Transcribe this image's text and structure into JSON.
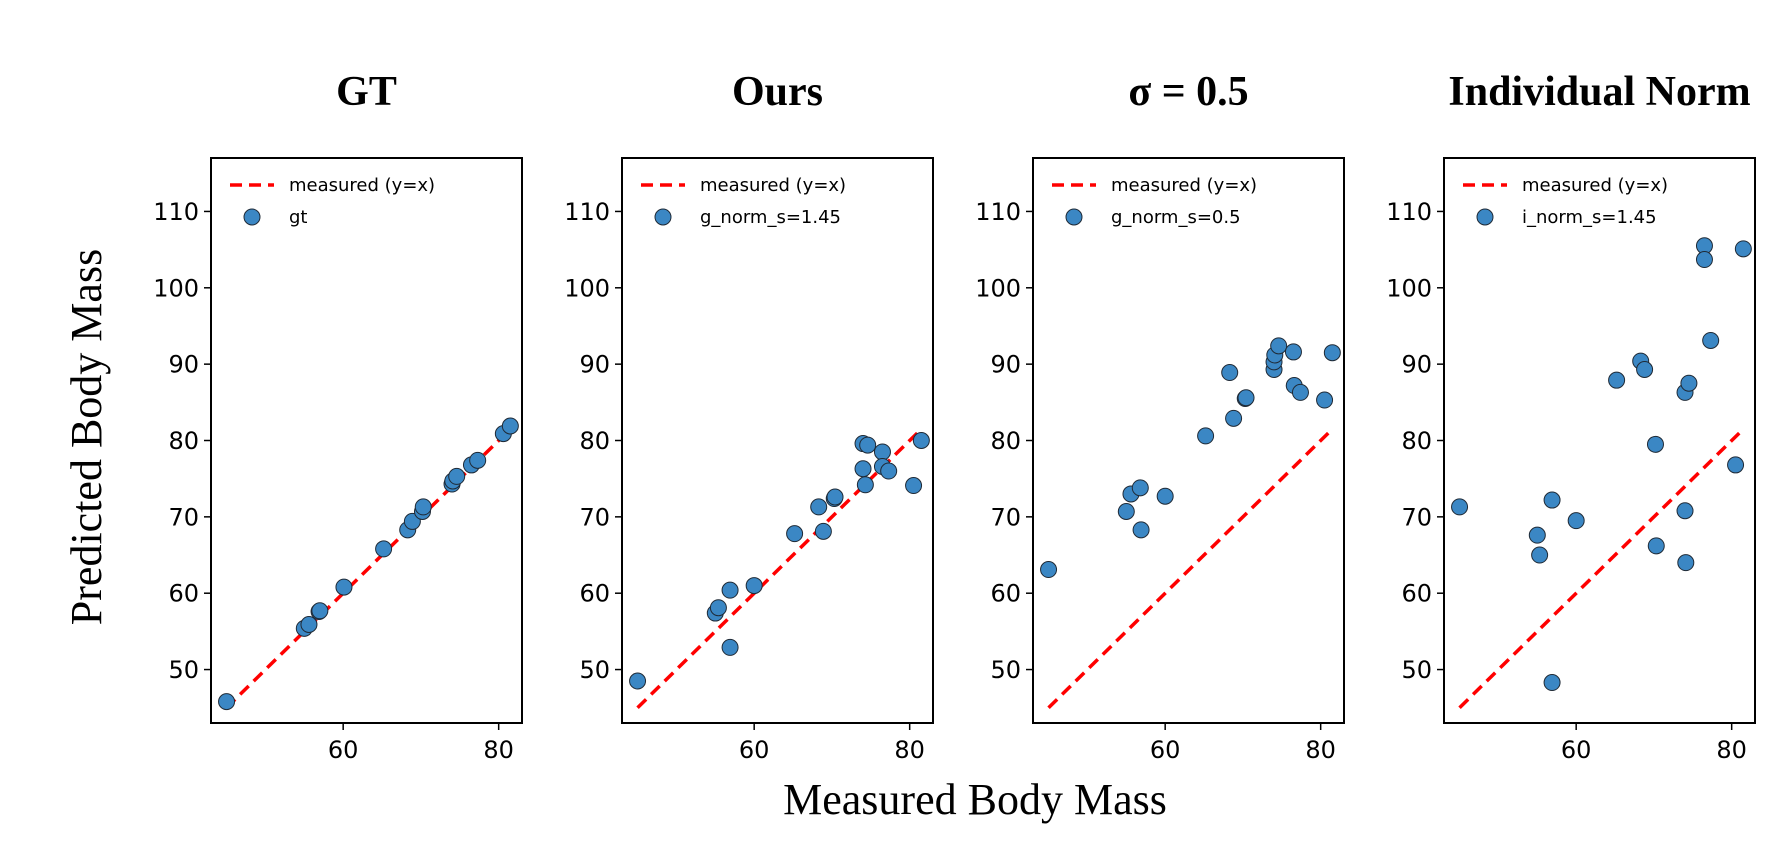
{
  "figure": {
    "xlabel": "Measured Body Mass",
    "ylabel": "Predicted Body Mass"
  },
  "chart_data": [
    {
      "type": "scatter",
      "title": "GT",
      "xlim": [
        43,
        83
      ],
      "ylim": [
        43,
        117
      ],
      "xticks": [
        "60",
        "80"
      ],
      "xtick_values": [
        60,
        80
      ],
      "yticks": [
        "50",
        "60",
        "70",
        "80",
        "90",
        "100",
        "110"
      ],
      "ytick_values": [
        50,
        60,
        70,
        80,
        90,
        100,
        110
      ],
      "reference_line": {
        "label": "measured (y=x)",
        "color": "#ff0000",
        "x": [
          45,
          81.5
        ],
        "y": [
          45,
          81.5
        ]
      },
      "series": [
        {
          "name": "gt",
          "color": "#3b87c4",
          "points": [
            [
              45,
              45.8
            ],
            [
              55,
              55.4
            ],
            [
              55.6,
              55.9
            ],
            [
              56.9,
              57.6
            ],
            [
              57,
              57.7
            ],
            [
              60.1,
              60.8
            ],
            [
              65.2,
              65.8
            ],
            [
              68.3,
              68.3
            ],
            [
              68.9,
              69.4
            ],
            [
              70.2,
              70.7
            ],
            [
              70.3,
              71.3
            ],
            [
              74,
              74.3
            ],
            [
              74.1,
              74.7
            ],
            [
              74.6,
              75.3
            ],
            [
              76.5,
              76.8
            ],
            [
              77.3,
              77.4
            ],
            [
              80.6,
              80.9
            ],
            [
              81.5,
              81.9
            ]
          ]
        }
      ]
    },
    {
      "type": "scatter",
      "title": "Ours",
      "xlim": [
        43,
        83
      ],
      "ylim": [
        43,
        117
      ],
      "xticks": [
        "60",
        "80"
      ],
      "xtick_values": [
        60,
        80
      ],
      "yticks": [
        "50",
        "60",
        "70",
        "80",
        "90",
        "100",
        "110"
      ],
      "ytick_values": [
        50,
        60,
        70,
        80,
        90,
        100,
        110
      ],
      "reference_line": {
        "label": "measured (y=x)",
        "color": "#ff0000",
        "x": [
          45,
          81.5
        ],
        "y": [
          45,
          81.5
        ]
      },
      "series": [
        {
          "name": "g_norm_s=1.45",
          "color": "#3b87c4",
          "points": [
            [
              45,
              48.5
            ],
            [
              55,
              57.4
            ],
            [
              55.4,
              58.1
            ],
            [
              56.9,
              60.4
            ],
            [
              56.9,
              52.9
            ],
            [
              60,
              61
            ],
            [
              65.2,
              67.8
            ],
            [
              68.3,
              71.3
            ],
            [
              68.9,
              68.1
            ],
            [
              70.3,
              72.4
            ],
            [
              70.4,
              72.6
            ],
            [
              74,
              76.3
            ],
            [
              74,
              79.6
            ],
            [
              74.3,
              74.2
            ],
            [
              74.6,
              79.4
            ],
            [
              76.5,
              78.5
            ],
            [
              76.5,
              76.6
            ],
            [
              77.3,
              76
            ],
            [
              80.5,
              74.1
            ],
            [
              81.5,
              80
            ]
          ]
        }
      ]
    },
    {
      "type": "scatter",
      "title": "σ = 0.5",
      "xlim": [
        43,
        83
      ],
      "ylim": [
        43,
        117
      ],
      "xticks": [
        "60",
        "80"
      ],
      "xtick_values": [
        60,
        80
      ],
      "yticks": [
        "50",
        "60",
        "70",
        "80",
        "90",
        "100",
        "110"
      ],
      "ytick_values": [
        50,
        60,
        70,
        80,
        90,
        100,
        110
      ],
      "reference_line": {
        "label": "measured (y=x)",
        "color": "#ff0000",
        "x": [
          45,
          81.5
        ],
        "y": [
          45,
          81.5
        ]
      },
      "series": [
        {
          "name": "g_norm_s=0.5",
          "color": "#3b87c4",
          "points": [
            [
              45,
              63.1
            ],
            [
              55,
              70.7
            ],
            [
              55.6,
              73
            ],
            [
              56.8,
              73.8
            ],
            [
              56.9,
              68.3
            ],
            [
              60,
              72.7
            ],
            [
              65.2,
              80.6
            ],
            [
              68.3,
              88.9
            ],
            [
              68.8,
              82.9
            ],
            [
              70.3,
              85.5
            ],
            [
              70.4,
              85.6
            ],
            [
              74,
              89.3
            ],
            [
              74,
              90.3
            ],
            [
              74.1,
              91.2
            ],
            [
              74.6,
              92.4
            ],
            [
              76.5,
              91.6
            ],
            [
              76.6,
              87.2
            ],
            [
              77.4,
              86.3
            ],
            [
              80.5,
              85.3
            ],
            [
              81.5,
              91.5
            ]
          ]
        }
      ]
    },
    {
      "type": "scatter",
      "title": "Individual Norm",
      "xlim": [
        43,
        83
      ],
      "ylim": [
        43,
        117
      ],
      "xticks": [
        "60",
        "80"
      ],
      "xtick_values": [
        60,
        80
      ],
      "yticks": [
        "50",
        "60",
        "70",
        "80",
        "90",
        "100",
        "110"
      ],
      "ytick_values": [
        50,
        60,
        70,
        80,
        90,
        100,
        110
      ],
      "reference_line": {
        "label": "measured (y=x)",
        "color": "#ff0000",
        "x": [
          45,
          81.5
        ],
        "y": [
          45,
          81.5
        ]
      },
      "series": [
        {
          "name": "i_norm_s=1.45",
          "color": "#3b87c4",
          "points": [
            [
              45,
              71.3
            ],
            [
              55,
              67.6
            ],
            [
              55.3,
              65
            ],
            [
              56.9,
              72.2
            ],
            [
              56.9,
              48.3
            ],
            [
              60,
              69.5
            ],
            [
              65.2,
              87.9
            ],
            [
              68.3,
              90.4
            ],
            [
              68.8,
              89.3
            ],
            [
              70.2,
              79.5
            ],
            [
              70.3,
              66.2
            ],
            [
              74,
              86.3
            ],
            [
              74,
              70.8
            ],
            [
              74.1,
              64
            ],
            [
              74.5,
              87.5
            ],
            [
              76.5,
              105.5
            ],
            [
              76.5,
              103.7
            ],
            [
              77.3,
              93.1
            ],
            [
              80.5,
              76.8
            ],
            [
              81.5,
              105.1
            ]
          ]
        }
      ]
    }
  ]
}
